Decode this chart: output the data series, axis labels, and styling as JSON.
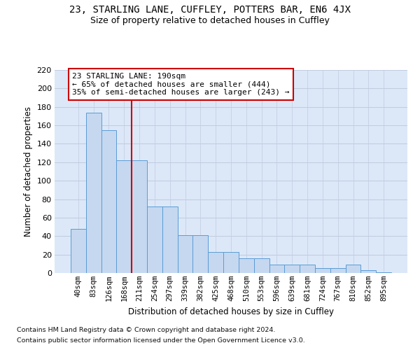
{
  "title_line1": "23, STARLING LANE, CUFFLEY, POTTERS BAR, EN6 4JX",
  "title_line2": "Size of property relative to detached houses in Cuffley",
  "xlabel": "Distribution of detached houses by size in Cuffley",
  "ylabel": "Number of detached properties",
  "categories": [
    "40sqm",
    "83sqm",
    "126sqm",
    "168sqm",
    "211sqm",
    "254sqm",
    "297sqm",
    "339sqm",
    "382sqm",
    "425sqm",
    "468sqm",
    "510sqm",
    "553sqm",
    "596sqm",
    "639sqm",
    "681sqm",
    "724sqm",
    "767sqm",
    "810sqm",
    "852sqm",
    "895sqm"
  ],
  "bar_values": [
    48,
    174,
    155,
    122,
    122,
    72,
    72,
    41,
    41,
    23,
    23,
    16,
    16,
    9,
    9,
    9,
    5,
    5,
    9,
    3,
    1
  ],
  "bar_color": "#c5d8f0",
  "bar_edgecolor": "#5b9bd5",
  "vline_color": "#cc0000",
  "annotation_text": "23 STARLING LANE: 190sqm\n← 65% of detached houses are smaller (444)\n35% of semi-detached houses are larger (243) →",
  "annotation_box_edgecolor": "#cc0000",
  "ylim_max": 220,
  "yticks": [
    0,
    20,
    40,
    60,
    80,
    100,
    120,
    140,
    160,
    180,
    200,
    220
  ],
  "grid_color": "#c0cce0",
  "bg_color": "#dce8f8",
  "footer_line1": "Contains HM Land Registry data © Crown copyright and database right 2024.",
  "footer_line2": "Contains public sector information licensed under the Open Government Licence v3.0."
}
